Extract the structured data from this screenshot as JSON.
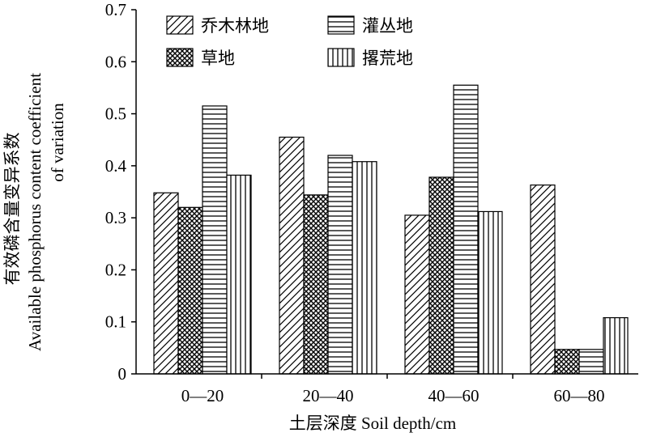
{
  "chart_data": {
    "type": "bar",
    "categories": [
      "0—20",
      "20—40",
      "40—60",
      "60—80"
    ],
    "series": [
      {
        "name": "乔木林地",
        "values": [
          0.348,
          0.455,
          0.305,
          0.363
        ],
        "pattern": "diagonal"
      },
      {
        "name": "草地",
        "values": [
          0.32,
          0.344,
          0.378,
          0.047
        ],
        "pattern": "crosshatch"
      },
      {
        "name": "灌丛地",
        "values": [
          0.515,
          0.42,
          0.555,
          0.047
        ],
        "pattern": "horizontal"
      },
      {
        "name": "撂荒地",
        "values": [
          0.382,
          0.408,
          0.312,
          0.108
        ],
        "pattern": "vertical"
      }
    ],
    "xlabel": "土层深度 Soil depth/cm",
    "ylabel_lines": [
      "有效磷含量变异系数",
      "Available phosphorus content coefficient",
      "of variation"
    ],
    "ylim": [
      0,
      0.7
    ],
    "yticks": [
      "0",
      "0.1",
      "0.2",
      "0.3",
      "0.4",
      "0.5",
      "0.6",
      "0.7"
    ],
    "grid": false,
    "legend_position": "top-left"
  }
}
